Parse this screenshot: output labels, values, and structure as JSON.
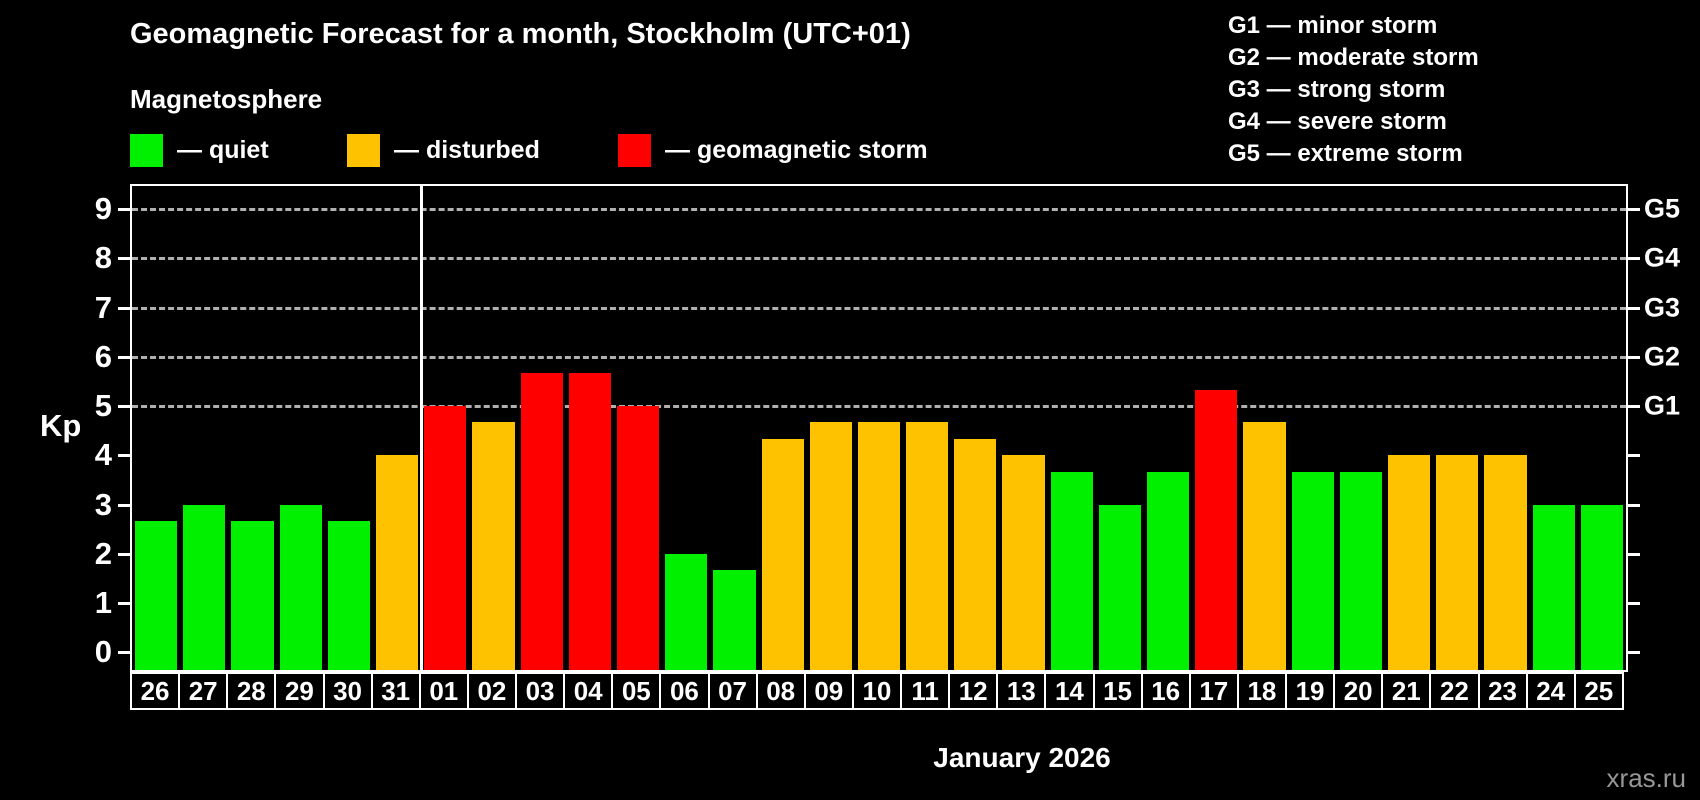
{
  "header": {
    "title": "Geomagnetic Forecast for a month, Stockholm (UTC+01)",
    "subtitle": "Magnetosphere",
    "legend": [
      {
        "name": "quiet",
        "label": "— quiet",
        "color": "#00f000"
      },
      {
        "name": "disturbed",
        "label": "— disturbed",
        "color": "#ffc200"
      },
      {
        "name": "storm",
        "label": "— geomagnetic storm",
        "color": "#ff0000"
      }
    ],
    "g_scale_legend": [
      "G1 — minor storm",
      "G2 — moderate storm",
      "G3 — strong storm",
      "G4 — severe storm",
      "G5 — extreme storm"
    ]
  },
  "chart_data": {
    "type": "bar",
    "title": "Geomagnetic Forecast for a month, Stockholm (UTC+01)",
    "ylabel": "Kp",
    "xlabel": "January 2026",
    "ylim": [
      0,
      9
    ],
    "yticks": [
      0,
      1,
      2,
      3,
      4,
      5,
      6,
      7,
      8,
      9
    ],
    "grid": "dashed horizontal lines at Kp 5-9",
    "legend_position": "top",
    "categories": [
      "26",
      "27",
      "28",
      "29",
      "30",
      "31",
      "01",
      "02",
      "03",
      "04",
      "05",
      "06",
      "07",
      "08",
      "09",
      "10",
      "11",
      "12",
      "13",
      "14",
      "15",
      "16",
      "17",
      "18",
      "19",
      "20",
      "21",
      "22",
      "23",
      "24",
      "25"
    ],
    "values": [
      2.67,
      3.0,
      2.67,
      3.0,
      2.67,
      4.0,
      5.0,
      4.67,
      5.67,
      5.67,
      5.0,
      2.0,
      1.67,
      4.33,
      4.67,
      4.67,
      4.67,
      4.33,
      4.0,
      3.67,
      3.0,
      3.67,
      5.33,
      4.67,
      3.67,
      3.67,
      4.0,
      4.0,
      4.0,
      3.0,
      3.0
    ],
    "statuses": [
      "quiet",
      "quiet",
      "quiet",
      "quiet",
      "quiet",
      "disturbed",
      "storm",
      "disturbed",
      "storm",
      "storm",
      "storm",
      "quiet",
      "quiet",
      "disturbed",
      "disturbed",
      "disturbed",
      "disturbed",
      "disturbed",
      "disturbed",
      "quiet",
      "quiet",
      "quiet",
      "storm",
      "disturbed",
      "quiet",
      "quiet",
      "disturbed",
      "disturbed",
      "disturbed",
      "quiet",
      "quiet"
    ],
    "right_axis": {
      "labels": [
        "G1",
        "G2",
        "G3",
        "G4",
        "G5"
      ],
      "kp": [
        5,
        6,
        7,
        8,
        9
      ]
    },
    "month_separator_after_index": 5
  },
  "colors": {
    "background": "#000000",
    "axis": "#ffffff",
    "gridline": "#b0b0b0",
    "quiet": "#00f000",
    "disturbed": "#ffc200",
    "storm": "#ff0000",
    "watermark_text": "#989898"
  },
  "footer": {
    "xlabel": "January 2026",
    "watermark": "xras.ru"
  }
}
